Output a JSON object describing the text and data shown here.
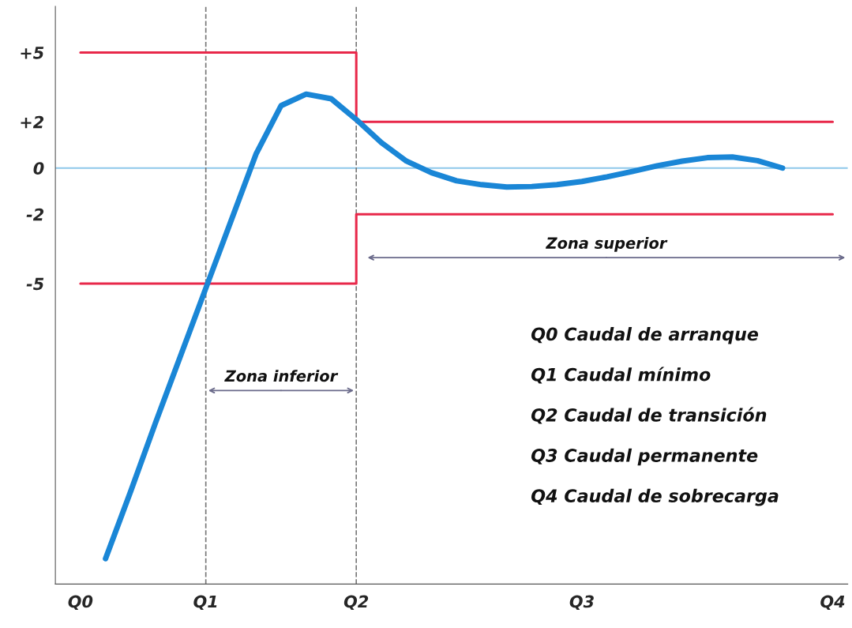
{
  "chart_data": {
    "type": "line",
    "ylim": [
      -18,
      7
    ],
    "categories": [
      "Q0",
      null,
      null,
      null,
      null,
      "Q1",
      null,
      null,
      null,
      null,
      null,
      "Q2",
      null,
      null,
      null,
      null,
      null,
      null,
      null,
      null,
      "Q3",
      null,
      null,
      null,
      null,
      null,
      null,
      null,
      null,
      null,
      "Q4"
    ],
    "yticks": [
      {
        "value": 5,
        "label": "+5"
      },
      {
        "value": 2,
        "label": "+2"
      },
      0,
      {
        "value": -2,
        "label": "-2"
      },
      {
        "value": -5,
        "label": "-5"
      }
    ],
    "series": [
      {
        "type": "step",
        "color": "#e8284a",
        "values": [
          5,
          5,
          5,
          5,
          5,
          5,
          5,
          5,
          5,
          5,
          5,
          2,
          2,
          2,
          2,
          2,
          2,
          2,
          2,
          2,
          2,
          2,
          2,
          2,
          2,
          2,
          2,
          2,
          2,
          2,
          2
        ]
      },
      {
        "type": "step",
        "color": "#e8284a",
        "values": [
          -5,
          -5,
          -5,
          -5,
          -5,
          -5,
          -5,
          -5,
          -5,
          -5,
          -5,
          -2,
          -2,
          -2,
          -2,
          -2,
          -2,
          -2,
          -2,
          -2,
          -2,
          -2,
          -2,
          -2,
          -2,
          -2,
          -2,
          -2,
          -2,
          -2,
          -2
        ]
      },
      {
        "color": "#1a86d6",
        "values": [
          null,
          -16.9,
          -14.0,
          -11.0,
          -8.1,
          -5.2,
          -2.3,
          0.6,
          2.7,
          3.2,
          3.0,
          2.1,
          1.1,
          0.3,
          -0.2,
          -0.55,
          -0.72,
          -0.82,
          -0.8,
          -0.72,
          -0.58,
          -0.38,
          -0.15,
          0.1,
          0.3,
          0.45,
          0.48,
          0.32,
          0.0,
          null,
          null
        ]
      }
    ],
    "ref_lines": [
      {
        "axis": "y",
        "value": 0,
        "color": "#8ec8ea",
        "line_style": "solid"
      },
      {
        "axis": "x",
        "value": "Q1",
        "color": "#777777",
        "line_style": "dashed"
      },
      {
        "axis": "x",
        "value": "Q2",
        "color": "#777777",
        "line_style": "dashed"
      }
    ],
    "annotations": [
      "Zona inferior",
      "Zona superior",
      "Q0 Caudal de arranque",
      "Q1 Caudal mínimo",
      "Q2 Caudal de transición",
      "Q3 Caudal permanente",
      "Q4 Caudal de sobrecarga"
    ],
    "grid": false,
    "legend": false
  }
}
